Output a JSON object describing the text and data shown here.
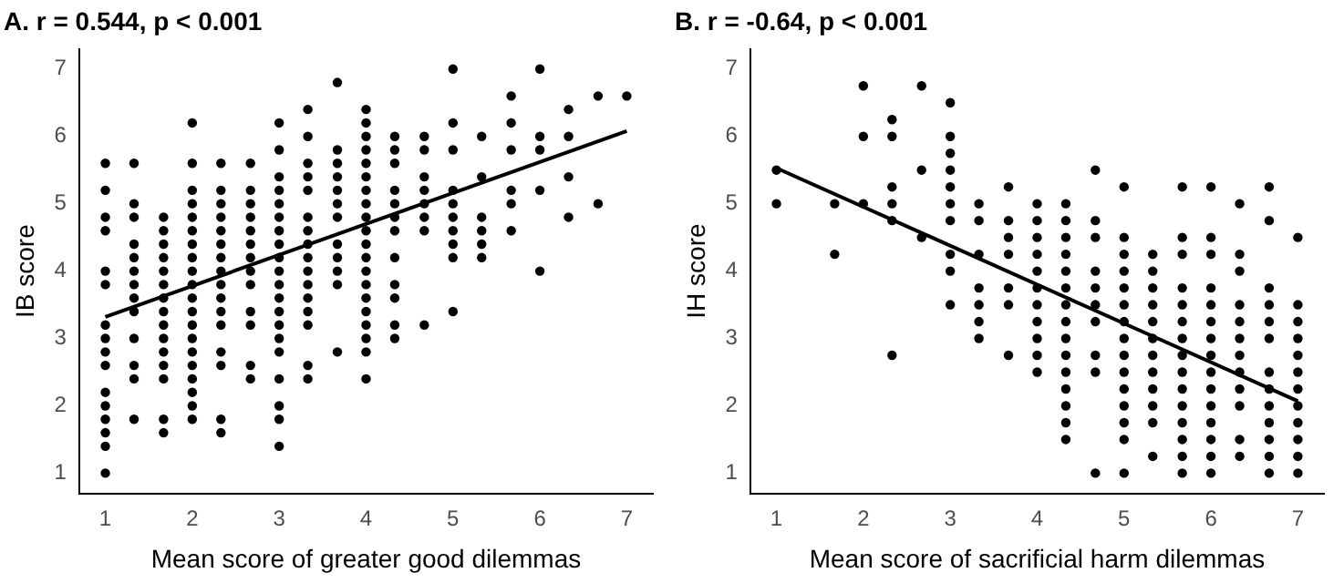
{
  "chart_data": [
    {
      "type": "scatter",
      "title": "A. r = 0.544, p < 0.001",
      "xlabel": "Mean score of greater good dilemmas",
      "ylabel": "IB score",
      "xlim": [
        0.7,
        7.3
      ],
      "ylim": [
        0.7,
        7.3
      ],
      "xticks": [
        1,
        2,
        3,
        4,
        5,
        6,
        7
      ],
      "yticks": [
        1,
        2,
        3,
        4,
        5,
        6,
        7
      ],
      "grid": false,
      "legend": false,
      "series": [
        {
          "marker": "circle",
          "color": "#000000",
          "x": [
            1,
            1,
            1,
            1,
            1,
            1,
            1,
            1,
            1,
            1,
            1,
            1,
            1,
            1,
            1,
            1,
            1.33,
            1.33,
            1.33,
            1.33,
            1.33,
            1.33,
            1.33,
            1.33,
            1.33,
            1.33,
            1.33,
            1.33,
            1.33,
            1.67,
            1.67,
            1.67,
            1.67,
            1.67,
            1.67,
            1.67,
            1.67,
            1.67,
            1.67,
            1.67,
            1.67,
            1.67,
            1.67,
            1.67,
            2,
            2,
            2,
            2,
            2,
            2,
            2,
            2,
            2,
            2,
            2,
            2,
            2,
            2,
            2,
            2,
            2,
            2,
            2,
            2,
            2.33,
            2.33,
            2.33,
            2.33,
            2.33,
            2.33,
            2.33,
            2.33,
            2.33,
            2.33,
            2.33,
            2.33,
            2.33,
            2.33,
            2.33,
            2.33,
            2.67,
            2.67,
            2.67,
            2.67,
            2.67,
            2.67,
            2.67,
            2.67,
            2.67,
            2.67,
            2.67,
            2.67,
            2.67,
            3,
            3,
            3,
            3,
            3,
            3,
            3,
            3,
            3,
            3,
            3,
            3,
            3,
            3,
            3,
            3,
            3,
            3,
            3,
            3,
            3.33,
            3.33,
            3.33,
            3.33,
            3.33,
            3.33,
            3.33,
            3.33,
            3.33,
            3.33,
            3.33,
            3.33,
            3.33,
            3.33,
            3.33,
            3.33,
            3.67,
            3.67,
            3.67,
            3.67,
            3.67,
            3.67,
            3.67,
            3.67,
            3.67,
            3.67,
            3.67,
            3.67,
            4,
            4,
            4,
            4,
            4,
            4,
            4,
            4,
            4,
            4,
            4,
            4,
            4,
            4,
            4,
            4,
            4,
            4,
            4,
            4,
            4.33,
            4.33,
            4.33,
            4.33,
            4.33,
            4.33,
            4.33,
            4.33,
            4.33,
            4.33,
            4.33,
            4.33,
            4.67,
            4.67,
            4.67,
            4.67,
            4.67,
            4.67,
            4.67,
            4.67,
            5,
            5,
            5,
            5,
            5,
            5,
            5,
            5,
            5,
            5,
            5.33,
            5.33,
            5.33,
            5.33,
            5.33,
            5.33,
            5.67,
            5.67,
            5.67,
            5.67,
            5.67,
            5.67,
            6,
            6,
            6,
            6,
            6,
            6.33,
            6.33,
            6.33,
            6.33,
            6.67,
            6.67,
            7
          ],
          "values": [
            5.6,
            5.2,
            4.8,
            4.6,
            4.0,
            3.8,
            3.2,
            3.0,
            2.8,
            2.6,
            2.2,
            2.0,
            1.8,
            1.6,
            1.4,
            1.0,
            5.6,
            5.0,
            4.8,
            4.4,
            4.2,
            4.0,
            3.8,
            3.6,
            3.4,
            3.0,
            2.6,
            2.4,
            1.8,
            4.8,
            4.6,
            4.4,
            4.2,
            4.0,
            3.8,
            3.6,
            3.4,
            3.2,
            3.0,
            2.8,
            2.6,
            2.4,
            1.8,
            1.6,
            6.2,
            5.6,
            5.2,
            5.0,
            4.8,
            4.6,
            4.4,
            4.2,
            4.0,
            3.8,
            3.6,
            3.4,
            3.2,
            3.0,
            2.8,
            2.6,
            2.4,
            2.2,
            2.0,
            1.8,
            5.6,
            5.2,
            5.0,
            4.8,
            4.6,
            4.4,
            4.2,
            4.0,
            3.8,
            3.6,
            3.4,
            3.2,
            2.8,
            2.6,
            1.8,
            1.6,
            5.6,
            5.2,
            5.0,
            4.8,
            4.6,
            4.4,
            4.2,
            4.0,
            3.8,
            3.4,
            3.2,
            2.6,
            2.4,
            6.2,
            5.8,
            5.4,
            5.2,
            5.0,
            4.8,
            4.6,
            4.4,
            4.2,
            4.0,
            3.8,
            3.6,
            3.4,
            3.2,
            3.0,
            2.8,
            2.4,
            2.0,
            1.8,
            1.4,
            6.4,
            6.0,
            5.6,
            5.4,
            5.2,
            4.8,
            4.6,
            4.4,
            4.2,
            4.0,
            3.8,
            3.6,
            3.4,
            3.2,
            2.6,
            2.4,
            6.8,
            5.8,
            5.6,
            5.4,
            5.2,
            5.0,
            4.8,
            4.4,
            4.2,
            4.0,
            3.8,
            2.8,
            6.4,
            6.2,
            6.0,
            5.8,
            5.6,
            5.4,
            5.2,
            5.0,
            4.8,
            4.6,
            4.4,
            4.2,
            4.0,
            3.8,
            3.6,
            3.4,
            3.2,
            3.0,
            2.8,
            2.4,
            6.0,
            5.8,
            5.6,
            5.2,
            5.0,
            4.8,
            4.6,
            4.2,
            3.8,
            3.6,
            3.2,
            3.0,
            6.0,
            5.8,
            5.4,
            5.2,
            5.0,
            4.8,
            4.6,
            3.2,
            7.0,
            6.2,
            5.8,
            5.2,
            5.0,
            4.8,
            4.6,
            4.4,
            4.2,
            3.4,
            6.0,
            5.4,
            4.8,
            4.6,
            4.4,
            4.2,
            6.6,
            6.2,
            5.8,
            5.2,
            5.0,
            4.6,
            7.0,
            6.0,
            5.8,
            5.2,
            4.0,
            6.4,
            6.0,
            5.4,
            4.8,
            6.6,
            5.0,
            6.6
          ]
        },
        {
          "type": "line",
          "marker": "none",
          "color": "#000000",
          "x": [
            1,
            7
          ],
          "values": [
            3.32,
            6.08
          ]
        }
      ]
    },
    {
      "type": "scatter",
      "title": "B. r = -0.64, p < 0.001",
      "xlabel": "Mean score of sacrificial harm dilemmas",
      "ylabel": "IH score",
      "xlim": [
        0.7,
        7.3
      ],
      "ylim": [
        0.7,
        7.3
      ],
      "xticks": [
        1,
        2,
        3,
        4,
        5,
        6,
        7
      ],
      "yticks": [
        1,
        2,
        3,
        4,
        5,
        6,
        7
      ],
      "grid": false,
      "legend": false,
      "series": [
        {
          "marker": "circle",
          "color": "#000000",
          "x": [
            1,
            1,
            1.67,
            1.67,
            2,
            2,
            2,
            2.33,
            2.33,
            2.33,
            2.33,
            2.33,
            2.33,
            2.67,
            2.67,
            2.67,
            3,
            3,
            3,
            3,
            3,
            3,
            3,
            3,
            3,
            3,
            3.33,
            3.33,
            3.33,
            3.33,
            3.33,
            3.33,
            3.33,
            3.67,
            3.67,
            3.67,
            3.67,
            3.67,
            3.67,
            3.67,
            4,
            4,
            4,
            4,
            4,
            4,
            4,
            4,
            4,
            4,
            4,
            4.33,
            4.33,
            4.33,
            4.33,
            4.33,
            4.33,
            4.33,
            4.33,
            4.33,
            4.33,
            4.33,
            4.33,
            4.33,
            4.33,
            4.33,
            4.67,
            4.67,
            4.67,
            4.67,
            4.67,
            4.67,
            4.67,
            4.67,
            4.67,
            4.67,
            5,
            5,
            5,
            5,
            5,
            5,
            5,
            5,
            5,
            5,
            5,
            5,
            5,
            5,
            5,
            5.33,
            5.33,
            5.33,
            5.33,
            5.33,
            5.33,
            5.33,
            5.33,
            5.33,
            5.33,
            5.33,
            5.33,
            5.67,
            5.67,
            5.67,
            5.67,
            5.67,
            5.67,
            5.67,
            5.67,
            5.67,
            5.67,
            5.67,
            5.67,
            5.67,
            5.67,
            5.67,
            6,
            6,
            6,
            6,
            6,
            6,
            6,
            6,
            6,
            6,
            6,
            6,
            6,
            6,
            6,
            6.33,
            6.33,
            6.33,
            6.33,
            6.33,
            6.33,
            6.33,
            6.33,
            6.33,
            6.33,
            6.33,
            6.33,
            6.67,
            6.67,
            6.67,
            6.67,
            6.67,
            6.67,
            6.67,
            6.67,
            6.67,
            6.67,
            6.67,
            6.67,
            6.67,
            7,
            7,
            7,
            7,
            7,
            7,
            7,
            7,
            7,
            7,
            7,
            7
          ],
          "values": [
            5.5,
            5.0,
            5.0,
            4.25,
            6.75,
            6.0,
            5.0,
            6.25,
            6.0,
            5.25,
            5.0,
            4.75,
            2.75,
            6.75,
            5.5,
            4.5,
            6.5,
            6.0,
            5.75,
            5.5,
            5.25,
            5.0,
            4.75,
            4.25,
            4.0,
            3.5,
            5.0,
            4.75,
            4.25,
            3.75,
            3.5,
            3.25,
            3.0,
            5.25,
            4.75,
            4.5,
            4.25,
            3.75,
            3.5,
            2.75,
            5.0,
            4.75,
            4.5,
            4.25,
            4.0,
            3.75,
            3.5,
            3.25,
            3.0,
            2.75,
            2.5,
            5.0,
            4.75,
            4.5,
            4.25,
            4.0,
            3.75,
            3.5,
            3.25,
            3.0,
            2.75,
            2.5,
            2.25,
            2.0,
            1.75,
            1.5,
            5.5,
            4.75,
            4.5,
            4.0,
            3.75,
            3.5,
            3.25,
            2.75,
            2.5,
            1.0,
            5.25,
            4.5,
            4.25,
            4.0,
            3.75,
            3.5,
            3.25,
            3.0,
            2.75,
            2.5,
            2.25,
            2.0,
            1.75,
            1.5,
            1.0,
            4.25,
            4.0,
            3.75,
            3.5,
            3.25,
            3.0,
            2.75,
            2.5,
            2.25,
            2.0,
            1.75,
            1.25,
            5.25,
            4.5,
            4.25,
            3.75,
            3.5,
            3.25,
            3.0,
            2.75,
            2.5,
            2.25,
            2.0,
            1.75,
            1.5,
            1.25,
            1.0,
            5.25,
            4.5,
            4.25,
            3.75,
            3.5,
            3.25,
            3.0,
            2.75,
            2.5,
            2.25,
            2.0,
            1.75,
            1.5,
            1.25,
            1.0,
            5.0,
            4.25,
            4.0,
            3.5,
            3.25,
            3.0,
            2.75,
            2.5,
            2.25,
            2.0,
            1.5,
            1.25,
            5.25,
            4.75,
            3.75,
            3.5,
            3.25,
            3.0,
            2.5,
            2.25,
            2.0,
            1.75,
            1.5,
            1.25,
            1.0,
            4.5,
            3.5,
            3.25,
            3.0,
            2.75,
            2.5,
            2.25,
            2.0,
            1.75,
            1.5,
            1.25,
            1.0
          ]
        },
        {
          "type": "line",
          "marker": "none",
          "color": "#000000",
          "x": [
            1,
            7
          ],
          "values": [
            5.53,
            2.07
          ]
        }
      ]
    }
  ]
}
